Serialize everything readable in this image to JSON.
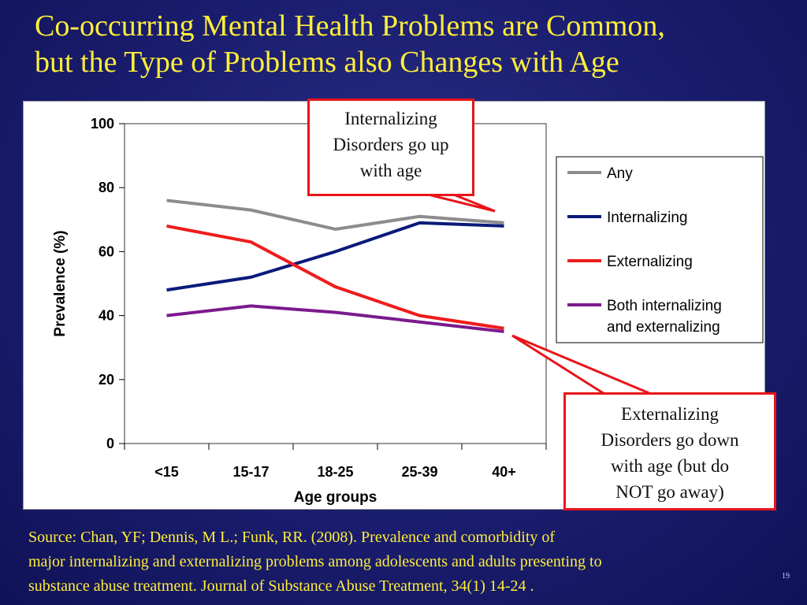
{
  "slide": {
    "title_line1": "Co-occurring Mental Health Problems are Common,",
    "title_line2": "but the Type of Problems also Changes with Age",
    "source_line1": "Source: Chan, YF; Dennis, M L.; Funk, RR. (2008). Prevalence and comorbidity of",
    "source_line2": "major internalizing  and externalizing problems among adolescents and adults presenting to",
    "source_line3": "substance abuse treatment. Journal of Substance Abuse Treatment, 34(1) 14-24 .",
    "page_number": "19"
  },
  "callouts": {
    "top": [
      "Internalizing",
      "Disorders go up",
      "with age"
    ],
    "bottom": [
      "Externalizing",
      "Disorders go down",
      "with age (but do",
      "NOT go away)"
    ],
    "border_color": "#e8141a"
  },
  "chart_data": {
    "type": "line",
    "title": "",
    "xlabel": "Age groups",
    "ylabel": "Prevalence (%)",
    "categories": [
      "<15",
      "15-17",
      "18-25",
      "25-39",
      "40+"
    ],
    "ylim": [
      0,
      100
    ],
    "yticks": [
      0,
      20,
      40,
      60,
      80,
      100
    ],
    "grid": false,
    "legend_position": "right",
    "series": [
      {
        "name": "Any",
        "values": [
          76,
          73,
          67,
          71,
          69
        ],
        "color": "#8c8c8c"
      },
      {
        "name": "Internalizing",
        "values": [
          48,
          52,
          60,
          69,
          68
        ],
        "color": "#0a1a7a"
      },
      {
        "name": "Externalizing",
        "values": [
          68,
          63,
          49,
          40,
          36
        ],
        "color": "#ee1c1c"
      },
      {
        "name": "Both internalizing and externalizing",
        "legend_lines": [
          "Both internalizing",
          "and externalizing"
        ],
        "values": [
          40,
          43,
          41,
          38,
          35
        ],
        "color": "#7b1a8c"
      }
    ]
  }
}
